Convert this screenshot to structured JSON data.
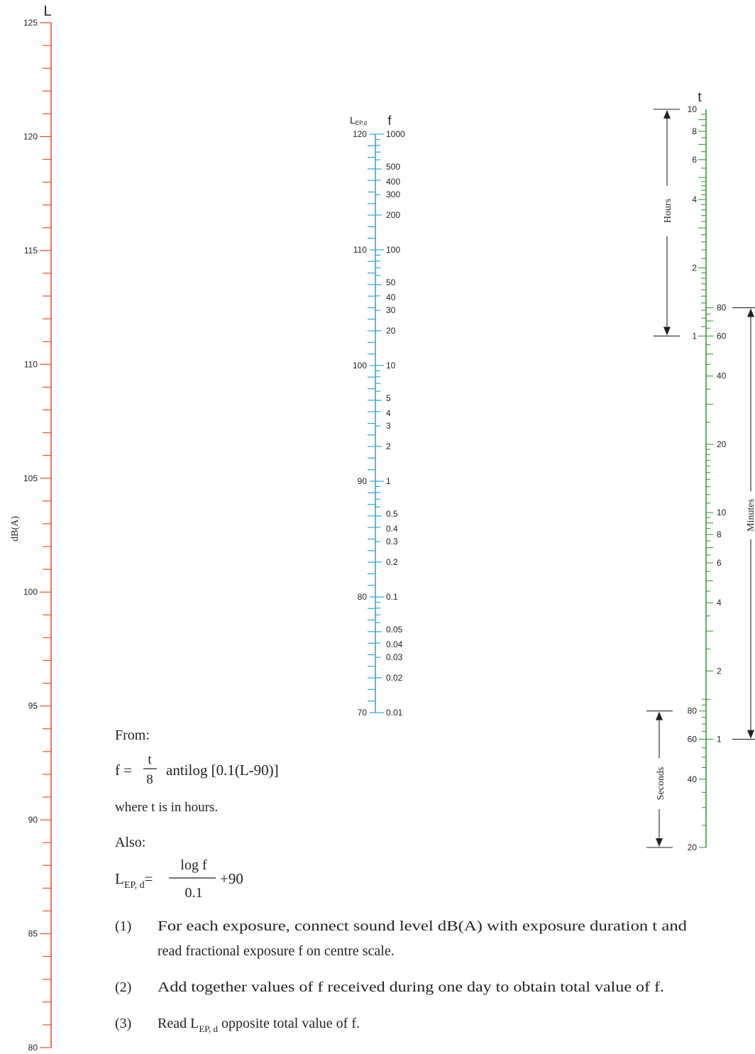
{
  "scales": {
    "L": {
      "title": "L",
      "unit_label": "dB(A)",
      "color": "#e8502e",
      "range": [
        80,
        125
      ],
      "labels": [
        125,
        120,
        115,
        110,
        105,
        100,
        95,
        90,
        85,
        80
      ]
    },
    "center": {
      "title_lep": "L",
      "title_lep_sub": "EP,d",
      "title_f": "f",
      "color": "#29a8e0",
      "lep_labels": [
        "120",
        "110",
        "100",
        "90",
        "80",
        "70"
      ],
      "f_labels": [
        "1000",
        "500",
        "400",
        "300",
        "200",
        "100",
        "50",
        "40",
        "30",
        "20",
        "10",
        "5",
        "4",
        "3",
        "2",
        "1",
        "0.5",
        "0.4",
        "0.3",
        "0.2",
        "0.1",
        "0.05",
        "0.04",
        "0.03",
        "0.02",
        "0.01"
      ]
    },
    "t": {
      "title": "t",
      "color": "#3c9a3c",
      "hour_labels": [
        "10",
        "8",
        "6",
        "4",
        "2",
        "1"
      ],
      "minute_labels": [
        "80",
        "60",
        "40",
        "20",
        "10",
        "8",
        "6",
        "4",
        "2",
        "1"
      ],
      "second_labels": [
        "80",
        "60",
        "40",
        "20"
      ],
      "groups": {
        "hours": "Hours",
        "minutes": "Minutes",
        "seconds": "Seconds"
      }
    }
  },
  "formula": {
    "from": "From:",
    "f_lhs": "f =",
    "f_num": "t",
    "f_den": "8",
    "f_rhs": "antilog [0.1(L-90)]",
    "where": "where t is in hours.",
    "also": "Also:",
    "lep_lhs": "L",
    "lep_lhs_sub": "EP, d",
    "lep_eq": "=",
    "lep_num": "log f",
    "lep_den": "0.1",
    "lep_rhs": "+90"
  },
  "steps": [
    {
      "num": "(1)",
      "line1": "For each exposure, connect sound level dB(A) with exposure duration t and",
      "line2": "read fractional exposure f on centre scale."
    },
    {
      "num": "(2)",
      "line1": "Add together values of f received during one day to obtain total value of f."
    },
    {
      "num": "(3)",
      "pre": "Read L",
      "sub": "EP, d",
      "post": " opposite total value of f."
    }
  ]
}
